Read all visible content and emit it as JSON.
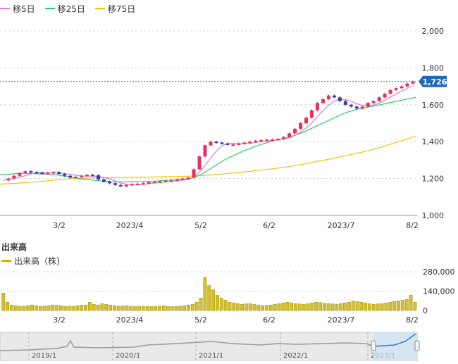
{
  "legend": {
    "ma5": {
      "label": "移5日",
      "color": "#e07ae0"
    },
    "ma25": {
      "label": "移25日",
      "color": "#2ecc71"
    },
    "ma75": {
      "label": "移75日",
      "color": "#f1c40f"
    }
  },
  "volume": {
    "title": "出来高",
    "legend_label": "出来高（株)",
    "color": "#c8b400",
    "axis": [
      "280,000",
      "140,000",
      "0"
    ]
  },
  "current_price": "1,726",
  "chart_data": {
    "type": "candlestick",
    "x_labels": [
      "3/2",
      "2023/4",
      "5/2",
      "6/2",
      "2023/7",
      "8/2"
    ],
    "y_ticks": [
      "2,000",
      "1,800",
      "1,600",
      "1,400",
      "1,200",
      "1,000"
    ],
    "ylim": [
      1000,
      2000
    ],
    "price_path": [
      1190,
      1200,
      1215,
      1230,
      1240,
      1235,
      1232,
      1228,
      1230,
      1235,
      1225,
      1215,
      1205,
      1210,
      1215,
      1220,
      1218,
      1195,
      1182,
      1175,
      1165,
      1160,
      1165,
      1170,
      1172,
      1175,
      1180,
      1182,
      1185,
      1188,
      1190,
      1195,
      1200,
      1205,
      1250,
      1320,
      1380,
      1400,
      1395,
      1390,
      1385,
      1385,
      1390,
      1395,
      1400,
      1405,
      1408,
      1410,
      1412,
      1415,
      1425,
      1445,
      1470,
      1500,
      1530,
      1570,
      1610,
      1630,
      1650,
      1640,
      1620,
      1600,
      1590,
      1580,
      1590,
      1610,
      1620,
      1640,
      1660,
      1680,
      1690,
      1700,
      1715,
      1726
    ],
    "ma25_path": [
      1220,
      1222,
      1225,
      1228,
      1228,
      1227,
      1226,
      1225,
      1224,
      1222,
      1218,
      1212,
      1207,
      1202,
      1198,
      1194,
      1190,
      1187,
      1185,
      1183,
      1182,
      1182,
      1182,
      1183,
      1184,
      1185,
      1186,
      1188,
      1190,
      1192,
      1194,
      1196,
      1200,
      1210,
      1225,
      1245,
      1265,
      1285,
      1305,
      1320,
      1335,
      1350,
      1362,
      1375,
      1385,
      1395,
      1405,
      1412,
      1420,
      1428,
      1438,
      1450,
      1465,
      1480,
      1495,
      1510,
      1525,
      1540,
      1555,
      1565,
      1575,
      1580,
      1588,
      1594,
      1600,
      1607,
      1614,
      1620,
      1627,
      1634,
      1640
    ],
    "ma75_path": [
      1170,
      1172,
      1175,
      1178,
      1182,
      1186,
      1190,
      1194,
      1198,
      1200,
      1202,
      1204,
      1205,
      1206,
      1207,
      1208,
      1208,
      1208,
      1209,
      1210,
      1211,
      1212,
      1213,
      1215,
      1218,
      1222,
      1226,
      1230,
      1235,
      1240,
      1245,
      1250,
      1256,
      1262,
      1270,
      1278,
      1287,
      1296,
      1305,
      1315,
      1325,
      1335,
      1345,
      1357,
      1370,
      1385,
      1400,
      1415,
      1430
    ],
    "volume_values": [
      125000,
      60000,
      40000,
      35000,
      30000,
      32000,
      35000,
      40000,
      35000,
      30000,
      32000,
      35000,
      40000,
      38000,
      35000,
      30000,
      32000,
      30000,
      35000,
      38000,
      40000,
      60000,
      45000,
      40000,
      50000,
      45000,
      40000,
      35000,
      30000,
      32000,
      35000,
      30000,
      28000,
      30000,
      32000,
      30000,
      28000,
      30000,
      32000,
      35000,
      30000,
      28000,
      30000,
      32000,
      35000,
      40000,
      45000,
      60000,
      90000,
      240000,
      180000,
      150000,
      110000,
      90000,
      75000,
      60000,
      55000,
      50000,
      45000,
      48000,
      50000,
      45000,
      40000,
      35000,
      38000,
      40000,
      45000,
      50000,
      55000,
      60000,
      55000,
      50000,
      48000,
      45000,
      50000,
      55000,
      60000,
      58000,
      52000,
      50000,
      48000,
      45000,
      50000,
      55000,
      60000,
      70000,
      65000,
      60000,
      55000,
      50000,
      45000,
      48000,
      50000,
      55000,
      60000,
      65000,
      70000,
      75000,
      80000,
      110000,
      60000
    ]
  },
  "navigator": {
    "labels": [
      "2019/1",
      "2020/1",
      "2021/1",
      "2022/1",
      "2023/1"
    ]
  }
}
